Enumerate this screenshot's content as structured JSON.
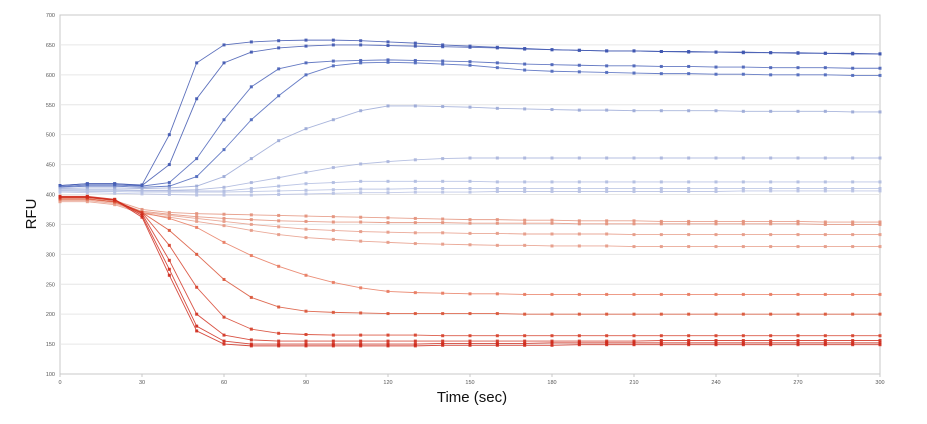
{
  "chart_data": {
    "type": "line",
    "title": "",
    "xlabel": "Time (sec)",
    "ylabel": "RFU",
    "xlim": [
      0,
      300
    ],
    "ylim": [
      100,
      700
    ],
    "x_ticks": [
      0,
      30,
      60,
      90,
      120,
      150,
      180,
      210,
      240,
      270,
      300
    ],
    "y_ticks": [
      100,
      150,
      200,
      250,
      300,
      350,
      400,
      450,
      500,
      550,
      600,
      650,
      700
    ],
    "grid": {
      "horizontal": true,
      "vertical": false
    },
    "legend": "none",
    "x": [
      0,
      10,
      20,
      30,
      40,
      50,
      60,
      70,
      80,
      90,
      100,
      110,
      120,
      130,
      140,
      150,
      160,
      170,
      180,
      190,
      200,
      210,
      220,
      230,
      240,
      250,
      260,
      270,
      280,
      290,
      300
    ],
    "series": [
      {
        "color": "#3f57b0",
        "values": [
          415,
          418,
          418,
          416,
          500,
          620,
          650,
          655,
          657,
          658,
          658,
          657,
          655,
          653,
          650,
          648,
          646,
          644,
          642,
          641,
          640,
          640,
          639,
          638,
          638,
          637,
          637,
          636,
          636,
          635,
          635
        ]
      },
      {
        "color": "#3f57b0",
        "values": [
          415,
          418,
          418,
          415,
          450,
          560,
          620,
          638,
          645,
          648,
          650,
          650,
          649,
          648,
          647,
          646,
          645,
          643,
          642,
          641,
          640,
          640,
          639,
          639,
          638,
          638,
          637,
          637,
          636,
          636,
          635
        ]
      },
      {
        "color": "#4a63b8",
        "values": [
          413,
          416,
          416,
          414,
          420,
          460,
          525,
          580,
          610,
          620,
          623,
          624,
          625,
          624,
          623,
          622,
          620,
          618,
          617,
          616,
          615,
          615,
          614,
          614,
          613,
          613,
          612,
          612,
          612,
          611,
          611
        ]
      },
      {
        "color": "#4f69bd",
        "values": [
          412,
          414,
          414,
          412,
          414,
          430,
          475,
          525,
          565,
          600,
          615,
          620,
          621,
          620,
          618,
          616,
          612,
          608,
          606,
          605,
          604,
          603,
          602,
          602,
          601,
          601,
          600,
          600,
          600,
          599,
          599
        ]
      },
      {
        "color": "#9aa8d6",
        "values": [
          410,
          411,
          411,
          410,
          411,
          414,
          430,
          460,
          490,
          510,
          525,
          540,
          548,
          548,
          547,
          546,
          544,
          543,
          542,
          541,
          541,
          540,
          540,
          540,
          540,
          539,
          539,
          539,
          539,
          538,
          538
        ]
      },
      {
        "color": "#a8b4dc",
        "values": [
          408,
          408,
          408,
          407,
          407,
          408,
          412,
          420,
          428,
          437,
          445,
          451,
          455,
          458,
          460,
          461,
          461,
          461,
          461,
          461,
          461,
          461,
          461,
          461,
          461,
          461,
          461,
          461,
          461,
          461,
          461
        ]
      },
      {
        "color": "#afbbe0",
        "values": [
          407,
          407,
          407,
          406,
          406,
          406,
          406,
          410,
          414,
          418,
          420,
          422,
          422,
          422,
          422,
          422,
          421,
          421,
          421,
          421,
          421,
          421,
          421,
          421,
          421,
          421,
          421,
          421,
          421,
          421,
          421
        ]
      },
      {
        "color": "#b4bfe2",
        "values": [
          406,
          405,
          405,
          404,
          404,
          404,
          404,
          405,
          406,
          407,
          408,
          409,
          409,
          410,
          410,
          410,
          410,
          410,
          410,
          410,
          410,
          410,
          410,
          410,
          410,
          410,
          410,
          410,
          410,
          410,
          410
        ]
      },
      {
        "color": "#b7c1e3",
        "values": [
          404,
          403,
          402,
          401,
          400,
          399,
          399,
          399,
          400,
          401,
          402,
          403,
          403,
          404,
          404,
          404,
          405,
          405,
          405,
          405,
          405,
          405,
          405,
          405,
          405,
          406,
          406,
          406,
          406,
          406,
          406
        ]
      },
      {
        "color": "#e3907a",
        "values": [
          395,
          395,
          390,
          375,
          370,
          368,
          367,
          366,
          365,
          364,
          363,
          362,
          361,
          360,
          359,
          358,
          358,
          357,
          357,
          356,
          356,
          356,
          355,
          355,
          355,
          355,
          355,
          355,
          354,
          354,
          354
        ]
      },
      {
        "color": "#e3907a",
        "values": [
          392,
          392,
          388,
          372,
          367,
          363,
          360,
          358,
          356,
          355,
          354,
          354,
          353,
          353,
          353,
          352,
          352,
          352,
          352,
          351,
          351,
          351,
          351,
          351,
          351,
          351,
          351,
          351,
          350,
          350,
          350
        ]
      },
      {
        "color": "#e69a86",
        "values": [
          390,
          390,
          385,
          370,
          365,
          360,
          355,
          350,
          346,
          342,
          340,
          338,
          337,
          336,
          336,
          335,
          335,
          334,
          334,
          334,
          334,
          333,
          333,
          333,
          333,
          333,
          333,
          333,
          333,
          333,
          333
        ]
      },
      {
        "color": "#e69a86",
        "values": [
          388,
          388,
          383,
          368,
          362,
          355,
          348,
          340,
          333,
          328,
          325,
          322,
          320,
          318,
          317,
          316,
          315,
          315,
          314,
          314,
          314,
          313,
          313,
          313,
          313,
          313,
          313,
          313,
          313,
          313,
          313
        ]
      },
      {
        "color": "#e87a5f",
        "values": [
          392,
          392,
          387,
          370,
          360,
          345,
          320,
          298,
          280,
          265,
          253,
          244,
          238,
          236,
          235,
          234,
          234,
          233,
          233,
          233,
          233,
          233,
          233,
          233,
          233,
          233,
          233,
          233,
          233,
          233,
          233
        ]
      },
      {
        "color": "#d95437",
        "values": [
          393,
          393,
          388,
          370,
          340,
          300,
          258,
          228,
          212,
          205,
          203,
          202,
          201,
          201,
          201,
          201,
          201,
          200,
          200,
          200,
          200,
          200,
          200,
          200,
          200,
          200,
          200,
          200,
          200,
          200,
          200
        ]
      },
      {
        "color": "#d6402a",
        "values": [
          395,
          395,
          390,
          370,
          315,
          245,
          195,
          175,
          168,
          166,
          165,
          165,
          165,
          165,
          164,
          164,
          164,
          164,
          164,
          164,
          164,
          164,
          164,
          164,
          164,
          164,
          164,
          164,
          164,
          164,
          164
        ]
      },
      {
        "color": "#d23322",
        "values": [
          396,
          396,
          391,
          368,
          290,
          200,
          165,
          157,
          155,
          155,
          155,
          155,
          155,
          155,
          155,
          155,
          155,
          155,
          155,
          155,
          155,
          155,
          156,
          156,
          156,
          156,
          156,
          156,
          156,
          156,
          156
        ]
      },
      {
        "color": "#cf2a1c",
        "values": [
          397,
          397,
          392,
          365,
          275,
          180,
          155,
          150,
          150,
          150,
          150,
          150,
          150,
          150,
          151,
          151,
          151,
          151,
          152,
          152,
          152,
          152,
          152,
          152,
          152,
          152,
          152,
          152,
          152,
          152,
          152
        ]
      },
      {
        "color": "#cf2a1c",
        "values": [
          396,
          396,
          391,
          362,
          265,
          172,
          150,
          147,
          147,
          147,
          147,
          147,
          147,
          147,
          148,
          148,
          148,
          148,
          148,
          149,
          149,
          149,
          149,
          149,
          149,
          149,
          149,
          149,
          149,
          149,
          149
        ]
      }
    ]
  }
}
